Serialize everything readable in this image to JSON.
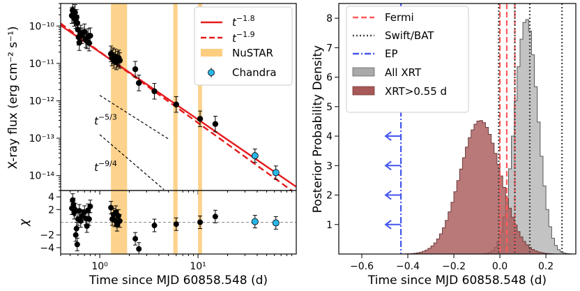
{
  "chart_data": [
    {
      "type": "scatter",
      "panel": "left-top",
      "title": "",
      "xlabel": "Time since MJD 60858.548 (d)",
      "ylabel": "X-ray flux (erg cm⁻² s⁻¹)",
      "xscale": "log",
      "yscale": "log",
      "xlim": [
        0.4,
        100
      ],
      "ylim": [
        4e-15,
        4e-10
      ],
      "xtick_labels": [
        "10⁰",
        "10¹"
      ],
      "ytick_labels": [
        "10⁻¹⁴",
        "10⁻¹³",
        "10⁻¹²",
        "10⁻¹¹",
        "10⁻¹⁰"
      ],
      "series": [
        {
          "name": "XRT",
          "color": "#000000",
          "points": [
            [
              0.52,
              1.9e-10
            ],
            [
              0.53,
              2.6e-10
            ],
            [
              0.54,
              2e-10
            ],
            [
              0.55,
              1.6e-10
            ],
            [
              0.56,
              2.3e-10
            ],
            [
              0.57,
              1.4e-10
            ],
            [
              0.58,
              1.7e-10
            ],
            [
              0.59,
              1.2e-10
            ],
            [
              0.6,
              8e-11
            ],
            [
              0.61,
              5e-11
            ],
            [
              0.62,
              3.6e-11
            ],
            [
              0.64,
              6.5e-11
            ],
            [
              0.66,
              5.5e-11
            ],
            [
              0.7,
              7e-11
            ],
            [
              0.72,
              4.3e-11
            ],
            [
              0.74,
              4e-11
            ],
            [
              0.76,
              5.2e-11
            ],
            [
              0.78,
              3.5e-11
            ],
            [
              0.8,
              5.5e-11
            ],
            [
              1.3,
              1.8e-11
            ],
            [
              1.33,
              1.4e-11
            ],
            [
              1.36,
              1.6e-11
            ],
            [
              1.4,
              1.2e-11
            ],
            [
              1.44,
              1.5e-11
            ],
            [
              1.48,
              1.1e-11
            ],
            [
              1.52,
              1.3e-11
            ],
            [
              1.56,
              1.4e-11
            ],
            [
              1.6,
              1.2e-11
            ],
            [
              2.3,
              7e-12
            ],
            [
              2.5,
              3e-12
            ],
            [
              3.6,
              1.8e-12
            ],
            [
              6.0,
              8e-13
            ],
            [
              10.5,
              3.3e-13
            ],
            [
              15.0,
              2.4e-13
            ]
          ]
        },
        {
          "name": "Chandra",
          "color": "#29b6e6",
          "points": [
            [
              38.0,
              3.4e-14
            ],
            [
              62.0,
              1.2e-14
            ]
          ]
        }
      ],
      "lines": [
        {
          "name": "t⁻¹·⁸",
          "label_base": "t",
          "label_exp": "−1.8",
          "color": "#e41a1c",
          "style": "solid",
          "slope": -1.8,
          "anchor": [
            1.0,
            2e-11
          ]
        },
        {
          "name": "t⁻¹·⁹",
          "label_base": "t",
          "label_exp": "−1.9",
          "color": "#e41a1c",
          "style": "dashed",
          "slope": -1.9,
          "anchor": [
            1.0,
            2.05e-11
          ]
        },
        {
          "name": "t⁻⁵⁄³ guide",
          "label_base": "t",
          "label_exp": "−5/3",
          "color": "#000000",
          "style": "dashed",
          "slope": -1.6667,
          "x_range": [
            1.0,
            5.0
          ],
          "anchor": [
            1.0,
            1.4e-12
          ]
        },
        {
          "name": "t⁻⁹⁄⁴ guide",
          "label_base": "t",
          "label_exp": "−9/4",
          "color": "#000000",
          "style": "dashed",
          "slope": -2.25,
          "x_range": [
            1.0,
            4.5
          ],
          "anchor": [
            1.0,
            1.25e-13
          ]
        }
      ],
      "shaded_regions": [
        {
          "name": "NuSTAR",
          "color": "#fdcd7f",
          "ranges": [
            [
              1.3,
              1.9
            ],
            [
              5.6,
              6.2
            ],
            [
              10.0,
              11.0
            ]
          ]
        }
      ],
      "legend": {
        "location": "top-right",
        "entries": [
          "t⁻¹·⁸",
          "t⁻¹·⁹",
          "NuSTAR",
          "Chandra"
        ]
      }
    },
    {
      "type": "scatter",
      "panel": "left-bottom",
      "ylabel": "χ",
      "xscale": "log",
      "xlim": [
        0.4,
        100
      ],
      "ylim": [
        -5,
        5
      ],
      "ytick_labels": [
        "4",
        "2",
        "−2",
        "−4"
      ],
      "series": [
        {
          "name": "XRT residuals",
          "color": "#000000",
          "points": [
            [
              0.52,
              2.2
            ],
            [
              0.53,
              3.5
            ],
            [
              0.54,
              2.8
            ],
            [
              0.55,
              1.5
            ],
            [
              0.56,
              2.0
            ],
            [
              0.57,
              -2.0
            ],
            [
              0.58,
              -1.0
            ],
            [
              0.59,
              -3.5
            ],
            [
              0.6,
              0.5
            ],
            [
              0.62,
              1.8
            ],
            [
              0.64,
              0.2
            ],
            [
              0.66,
              1.0
            ],
            [
              0.7,
              1.6
            ],
            [
              0.72,
              0.6
            ],
            [
              0.74,
              -0.6
            ],
            [
              0.76,
              1.9
            ],
            [
              0.78,
              0.5
            ],
            [
              0.8,
              2.5
            ],
            [
              1.3,
              2.3
            ],
            [
              1.34,
              0.5
            ],
            [
              1.38,
              1.2
            ],
            [
              1.42,
              0.3
            ],
            [
              1.46,
              1.6
            ],
            [
              1.5,
              -0.4
            ],
            [
              1.55,
              1.0
            ],
            [
              1.6,
              0.2
            ],
            [
              2.3,
              -2.6
            ],
            [
              2.5,
              -4.2
            ],
            [
              3.6,
              -0.5
            ],
            [
              6.0,
              -0.3
            ],
            [
              10.5,
              0.0
            ],
            [
              15.0,
              0.9
            ]
          ]
        },
        {
          "name": "Chandra residuals",
          "color": "#29b6e6",
          "points": [
            [
              38.0,
              0.1
            ],
            [
              62.0,
              -0.1
            ]
          ]
        }
      ]
    },
    {
      "type": "histogram",
      "panel": "right",
      "title": "",
      "xlabel": "Time since MJD 60858.548 (d)",
      "ylabel": "Posterior Probability Density",
      "xlim": [
        -0.7,
        0.33
      ],
      "ylim": [
        0,
        8.5
      ],
      "xtick_labels": [
        "−0.6",
        "−0.4",
        "−0.2",
        "0.0",
        "0.2"
      ],
      "ytick_labels": [
        "1",
        "2",
        "3",
        "4",
        "5",
        "6",
        "7",
        "8"
      ],
      "series": [
        {
          "name": "All XRT",
          "color": "#a9a9a9",
          "mean": 0.115,
          "sigma": 0.05
        },
        {
          "name": "XRT>0.55 d",
          "color": "#a85858",
          "mean": -0.085,
          "sigma": 0.088
        }
      ],
      "vlines": [
        {
          "name": "Fermi",
          "color": "#ff5a5a",
          "style": "dashed",
          "x": [
            0.0,
            0.03,
            0.065
          ]
        },
        {
          "name": "Swift/BAT",
          "color": "#444444",
          "style": "dotted",
          "x": [
            -0.005,
            0.065,
            0.13,
            0.27
          ]
        },
        {
          "name": "EP",
          "color": "#4455ee",
          "style": "dashdot",
          "x": [
            -0.43
          ]
        }
      ],
      "upper_limit_arrows": {
        "color": "#4455ee",
        "x": -0.43,
        "y": [
          1,
          2,
          3,
          4
        ]
      },
      "legend": {
        "location": "top-left",
        "entries": [
          "Fermi",
          "Swift/BAT",
          "EP",
          "All XRT",
          "XRT>0.55 d"
        ]
      }
    }
  ]
}
